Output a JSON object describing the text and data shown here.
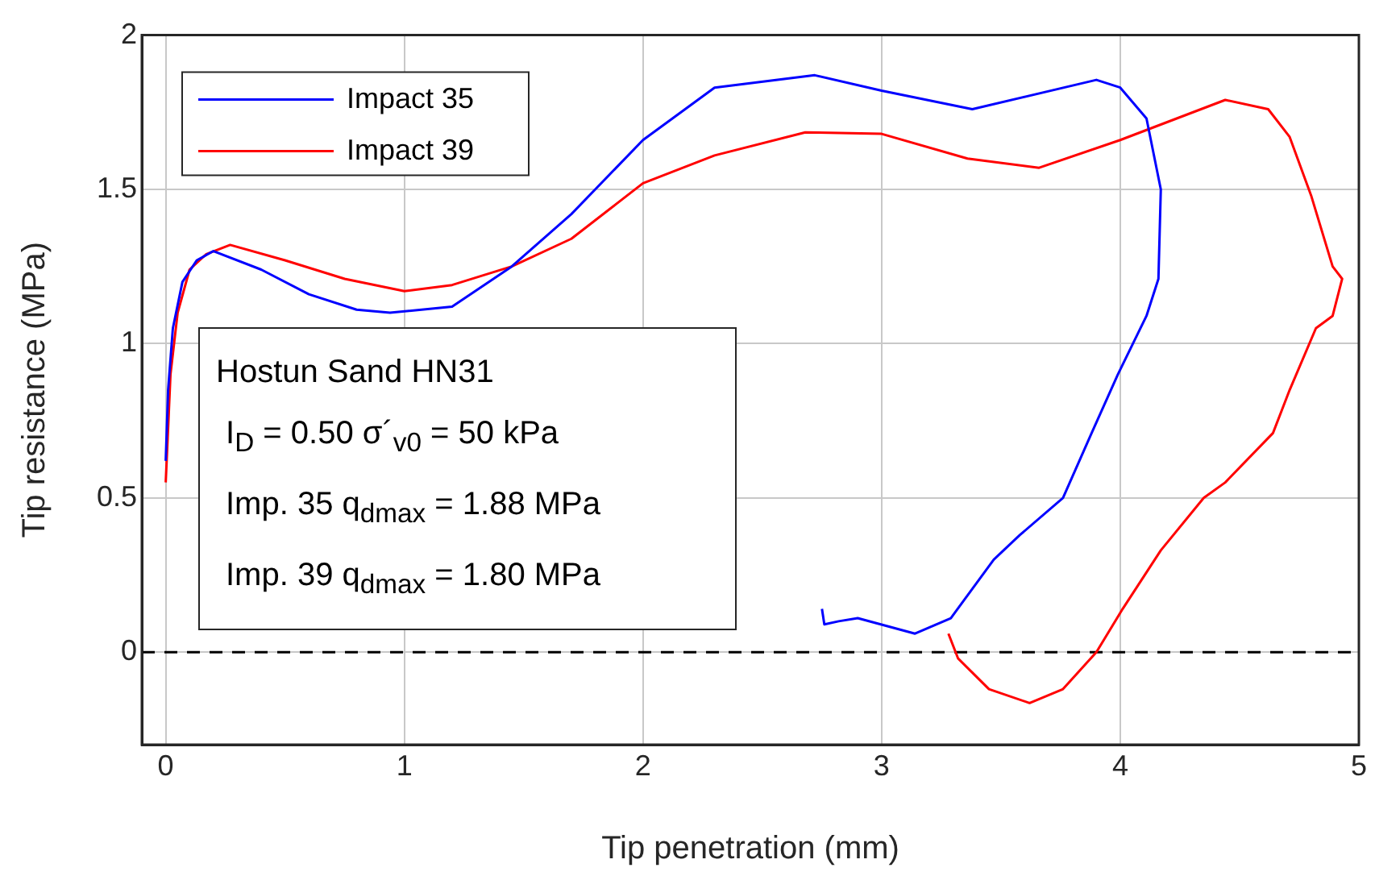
{
  "chart_data": {
    "type": "line",
    "xlabel": "Tip penetration (mm)",
    "ylabel": "Tip resistance (MPa)",
    "xlim": [
      -0.1,
      5
    ],
    "ylim": [
      -0.3,
      2
    ],
    "xticks": [
      0,
      1,
      2,
      3,
      4,
      5
    ],
    "yticks": [
      0,
      0.5,
      1,
      1.5,
      2
    ],
    "grid": true,
    "legend": "top left",
    "marker": "none",
    "line_style": "solid",
    "series": [
      {
        "name": "Impact 35",
        "color": "#0000ff",
        "x": [
          0,
          0.01,
          0.03,
          0.07,
          0.13,
          0.2,
          0.4,
          0.6,
          0.8,
          0.94,
          1.2,
          1.45,
          1.7,
          2.0,
          2.3,
          2.72,
          3.0,
          3.38,
          3.9,
          4.0,
          4.11,
          4.17,
          4.16,
          4.11,
          3.99,
          3.88,
          3.76,
          3.58,
          3.47,
          3.29,
          3.14,
          2.9,
          2.82,
          2.76,
          2.75
        ],
        "values": [
          0.62,
          0.85,
          1.05,
          1.2,
          1.27,
          1.3,
          1.24,
          1.16,
          1.11,
          1.1,
          1.12,
          1.25,
          1.42,
          1.66,
          1.83,
          1.87,
          1.82,
          1.76,
          1.855,
          1.83,
          1.73,
          1.5,
          1.21,
          1.09,
          0.9,
          0.71,
          0.5,
          0.38,
          0.3,
          0.11,
          0.06,
          0.11,
          0.1,
          0.09,
          0.14
        ]
      },
      {
        "name": "Impact 39",
        "color": "#ff0000",
        "x": [
          0,
          0.02,
          0.05,
          0.1,
          0.17,
          0.27,
          0.5,
          0.75,
          1.0,
          1.2,
          1.45,
          1.7,
          2.0,
          2.3,
          2.68,
          3.0,
          3.36,
          3.66,
          4.0,
          4.44,
          4.62,
          4.71,
          4.8,
          4.89,
          4.93,
          4.89,
          4.82,
          4.71,
          4.64,
          4.44,
          4.35,
          4.17,
          4.01,
          3.9,
          3.76,
          3.62,
          3.45,
          3.32,
          3.28
        ],
        "values": [
          0.55,
          0.9,
          1.1,
          1.24,
          1.29,
          1.32,
          1.27,
          1.21,
          1.17,
          1.19,
          1.25,
          1.34,
          1.52,
          1.61,
          1.685,
          1.68,
          1.6,
          1.57,
          1.66,
          1.79,
          1.76,
          1.67,
          1.48,
          1.25,
          1.21,
          1.09,
          1.05,
          0.85,
          0.71,
          0.55,
          0.5,
          0.33,
          0.14,
          0.0,
          -0.12,
          -0.165,
          -0.12,
          -0.02,
          0.06
        ]
      }
    ],
    "ref_lines": [
      {
        "axis": "y",
        "value": 0,
        "color": "#000000",
        "line_style": "dashed"
      }
    ],
    "annotations": [
      "Hostun Sand HN31",
      "I$_{D}$ = 0.50 σ´$_{v0}$ = 50 kPa",
      "Imp. 35 q$_{dmax}$ = 1.88 MPa",
      "Imp. 39 q$_{dmax}$ = 1.80 MPa"
    ]
  }
}
